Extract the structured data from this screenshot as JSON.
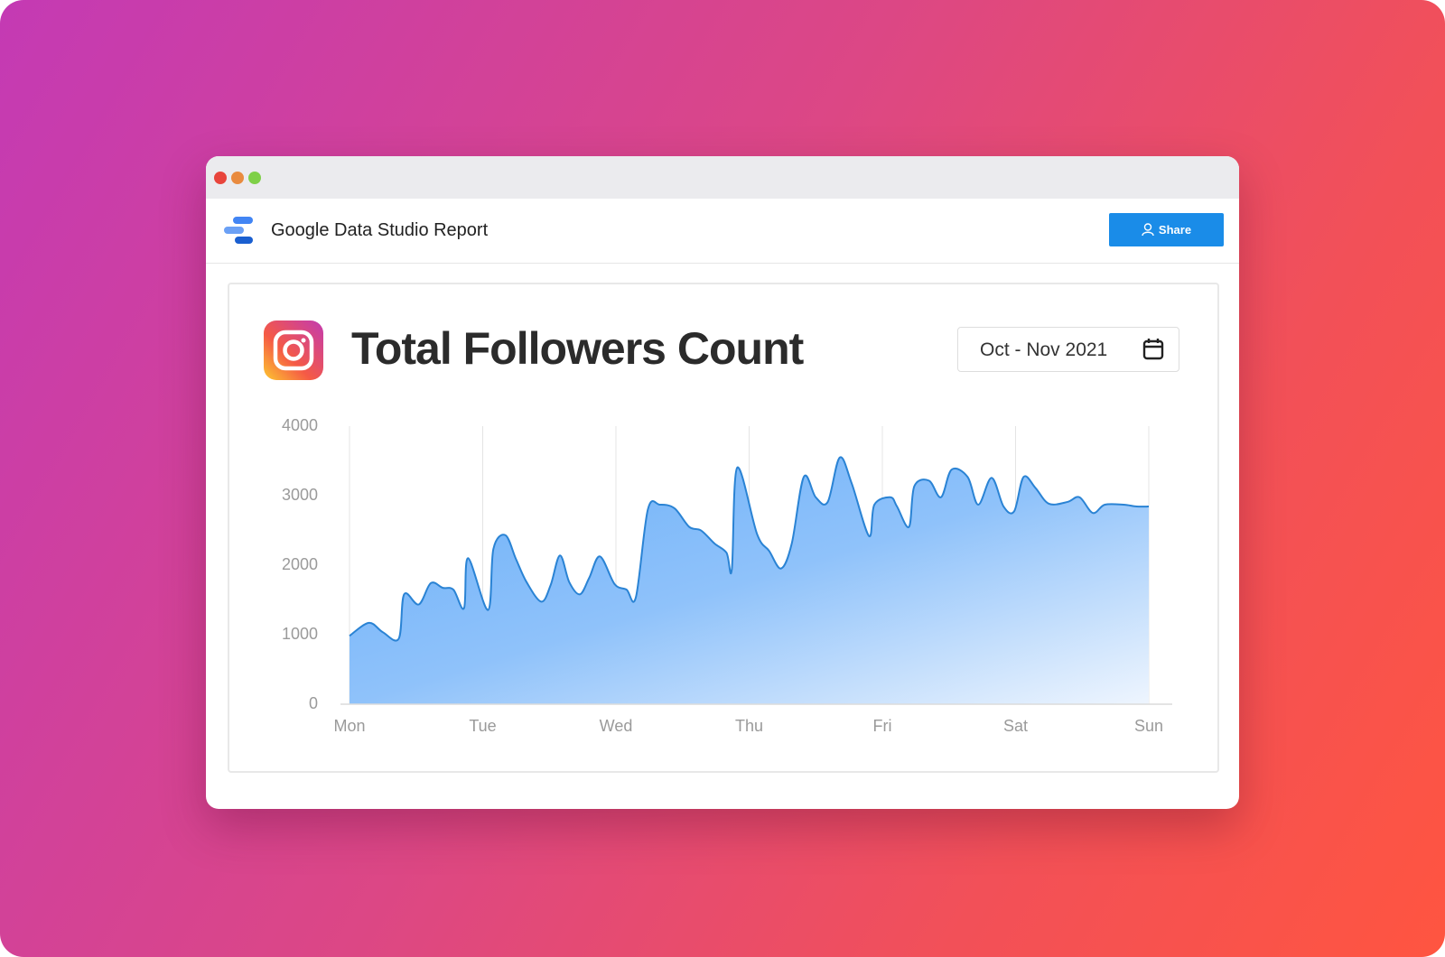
{
  "header": {
    "title": "Google Data Studio Report",
    "share_button": "Share"
  },
  "chart_data": {
    "type": "area",
    "title": "Total Followers Count",
    "date_range": "Oct - Nov 2021",
    "x": [
      0,
      0.145,
      0.25,
      0.37,
      0.41,
      0.52,
      0.61,
      0.7,
      0.78,
      0.86,
      0.89,
      1.04,
      1.08,
      1.17,
      1.25,
      1.33,
      1.44,
      1.51,
      1.58,
      1.65,
      1.73,
      1.8,
      1.88,
      1.99,
      2.08,
      2.15,
      2.24,
      2.33,
      2.44,
      2.55,
      2.64,
      2.74,
      2.83,
      2.87,
      2.91,
      3.06,
      3.15,
      3.24,
      3.32,
      3.41,
      3.5,
      3.59,
      3.68,
      3.77,
      3.9,
      3.94,
      4.06,
      4.11,
      4.2,
      4.24,
      4.35,
      4.44,
      4.52,
      4.64,
      4.72,
      4.82,
      4.91,
      4.99,
      5.06,
      5.15,
      5.25,
      5.39,
      5.48,
      5.58,
      5.67,
      5.81,
      5.91,
      6
    ],
    "values": [
      983,
      1170,
      1036,
      944,
      1581,
      1435,
      1741,
      1674,
      1648,
      1382,
      2100,
      1355,
      2233,
      2432,
      2086,
      1754,
      1475,
      1714,
      2140,
      1754,
      1581,
      1820,
      2126,
      1728,
      1648,
      1541,
      2804,
      2870,
      2817,
      2551,
      2498,
      2312,
      2179,
      1940,
      3402,
      2445,
      2206,
      1953,
      2312,
      3269,
      2977,
      2910,
      3548,
      3176,
      2419,
      2870,
      2977,
      2844,
      2551,
      3136,
      3216,
      2977,
      3375,
      3269,
      2870,
      3256,
      2844,
      2777,
      3269,
      3110,
      2884,
      2910,
      2977,
      2751,
      2870,
      2870,
      2844,
      2844
    ],
    "color": "#2a83d4",
    "xlim": [
      0,
      6
    ],
    "xticks": [
      {
        "value": 0,
        "label": "Mon"
      },
      {
        "value": 1,
        "label": "Tue"
      },
      {
        "value": 2,
        "label": "Wed"
      },
      {
        "value": 3,
        "label": "Thu"
      },
      {
        "value": 4,
        "label": "Fri"
      },
      {
        "value": 5,
        "label": "Sat"
      },
      {
        "value": 6,
        "label": "Sun"
      }
    ],
    "ylim": [
      0,
      4000
    ],
    "yticks": [
      0,
      1000,
      2000,
      3000,
      4000
    ],
    "grid": "x"
  }
}
